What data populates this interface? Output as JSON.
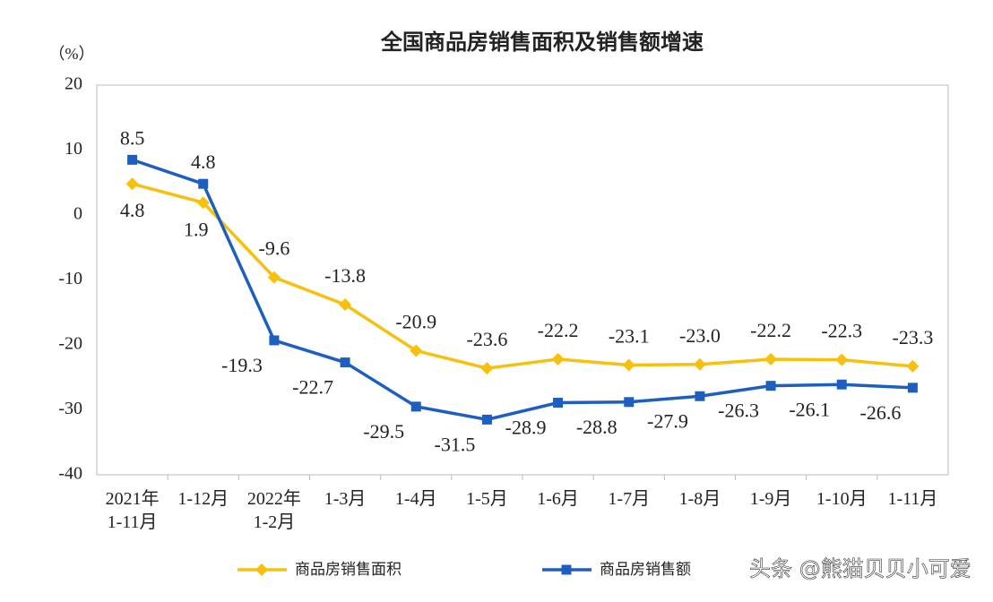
{
  "chart_data": {
    "type": "line",
    "title": "全国商品房销售面积及销售额增速",
    "y_unit": "（%）",
    "categories": [
      "2021年\n1-11月",
      "1-12月",
      "2022年\n1-2月",
      "1-3月",
      "1-4月",
      "1-5月",
      "1-6月",
      "1-7月",
      "1-8月",
      "1-9月",
      "1-10月",
      "1-11月"
    ],
    "series": [
      {
        "name": "商品房销售面积",
        "color": "#f7c00c",
        "marker": "diamond",
        "values": [
          4.8,
          1.9,
          -9.6,
          -13.8,
          -20.9,
          -23.6,
          -22.2,
          -23.1,
          -23.0,
          -22.2,
          -22.3,
          -23.3
        ],
        "value_labels": [
          "4.8",
          "1.9",
          "-9.6",
          "-13.8",
          "-20.9",
          "-23.6",
          "-22.2",
          "-23.1",
          "-23.0",
          "-22.2",
          "-22.3",
          "-23.3"
        ]
      },
      {
        "name": "商品房销售额",
        "color": "#1d5fc0",
        "marker": "square",
        "values": [
          8.5,
          4.8,
          -19.3,
          -22.7,
          -29.5,
          -31.5,
          -28.9,
          -28.8,
          -27.9,
          -26.3,
          -26.1,
          -26.6
        ],
        "value_labels": [
          "8.5",
          "4.8",
          "-19.3",
          "-22.7",
          "-29.5",
          "-31.5",
          "-28.9",
          "-28.8",
          "-27.9",
          "-26.3",
          "-26.1",
          "-26.6"
        ]
      }
    ],
    "ylim": [
      -40,
      20
    ],
    "yticks": [
      -40,
      -30,
      -20,
      -10,
      0,
      10,
      20
    ],
    "grid": false,
    "watermark": "头条 @熊猫贝贝小可爱"
  }
}
